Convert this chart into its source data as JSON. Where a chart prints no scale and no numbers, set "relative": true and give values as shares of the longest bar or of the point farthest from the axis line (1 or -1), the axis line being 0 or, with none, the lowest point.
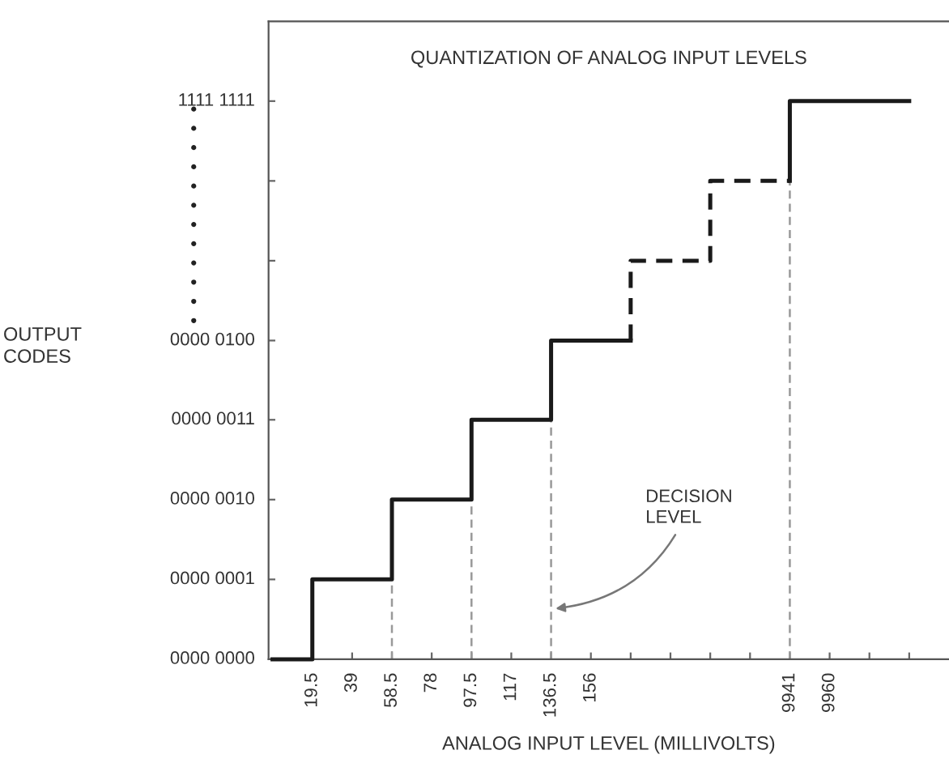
{
  "chart_data": {
    "type": "step",
    "relative": true,
    "title": "QUANTIZATION OF ANALOG INPUT LEVELS",
    "xlabel": "ANALOG INPUT LEVEL (MILLIVOLTS)",
    "categories": [
      null,
      "19.5",
      "39",
      "58.5",
      "78",
      "97.5",
      "117",
      "136.5",
      "156",
      null,
      null,
      null,
      null,
      "9941",
      "9960",
      null,
      null
    ],
    "series": [
      {
        "color": "#1a1a1a",
        "line_style": "solid",
        "values": [
          0,
          0,
          0.143,
          0.143,
          0.286,
          0.286,
          0.429,
          0.429,
          0.571,
          0.571,
          null,
          null,
          null,
          null,
          null,
          null,
          null
        ]
      },
      {
        "color": "#1a1a1a",
        "line_style": "dashed",
        "values": [
          null,
          null,
          null,
          null,
          null,
          null,
          null,
          null,
          null,
          0.571,
          0.714,
          0.714,
          0.857,
          0.857,
          null,
          null,
          null
        ]
      },
      {
        "color": "#1a1a1a",
        "line_style": "solid",
        "values": [
          null,
          null,
          null,
          null,
          null,
          null,
          null,
          null,
          null,
          null,
          null,
          null,
          null,
          0.857,
          1,
          1,
          1
        ]
      }
    ],
    "ref_lines": [
      {
        "axis": "x",
        "value": "58.5",
        "color": "#999999",
        "line_style": "dashed"
      },
      {
        "axis": "x",
        "value": "97.5",
        "color": "#999999",
        "line_style": "dashed"
      },
      {
        "axis": "x",
        "value": "136.5",
        "color": "#999999",
        "line_style": "dashed"
      },
      {
        "axis": "x",
        "value": "9941",
        "color": "#999999",
        "line_style": "dashed"
      }
    ],
    "annotations": [
      "OUTPUT\nCODES",
      "0000 0000",
      "0000 0001",
      "0000 0010",
      "0000 0011",
      "0000 0100",
      "1111 1111",
      {
        "text": "DECISION\nLEVEL",
        "x": "136.5",
        "y": 0.09
      }
    ],
    "grid": false,
    "legend": false,
    "marker": "none"
  }
}
